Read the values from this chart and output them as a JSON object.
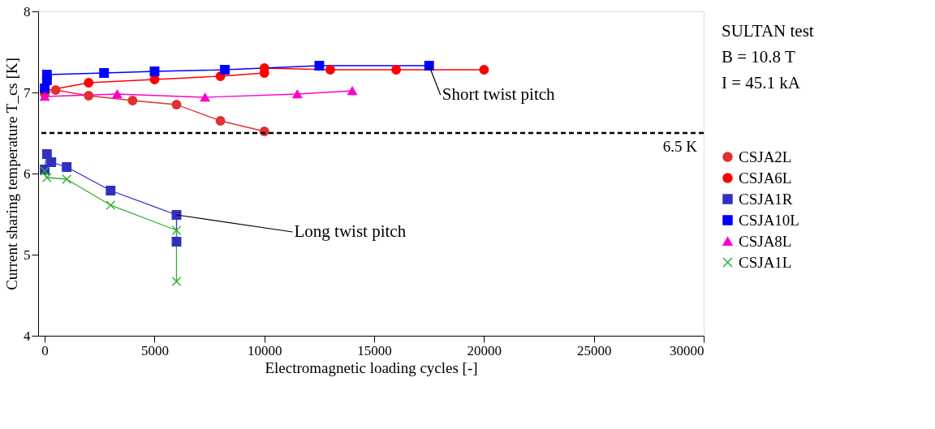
{
  "chart_data": {
    "type": "line",
    "xlabel": "Electromagnetic loading cycles [-]",
    "ylabel": "Current sharing temperature T_cs [K]",
    "xlim": [
      -300,
      30000
    ],
    "xticks": [
      0,
      5000,
      10000,
      15000,
      20000,
      25000,
      30000
    ],
    "ylim": [
      4,
      8
    ],
    "yticks": [
      4,
      5,
      6,
      7,
      8
    ],
    "grid": false,
    "legend": "right",
    "line_style": "solid",
    "series": [
      {
        "name": "CSJA2L",
        "color": "#e03030",
        "marker": "circle",
        "x": [
          0,
          500,
          2000,
          4000,
          6000,
          8000,
          10000
        ],
        "values": [
          6.98,
          7.03,
          6.96,
          6.9,
          6.85,
          6.65,
          6.52
        ]
      },
      {
        "name": "CSJA6L",
        "color": "#ff0000",
        "marker": "circle",
        "x": [
          0,
          2000,
          5000,
          8000,
          10000,
          10000,
          13000,
          16000,
          20000
        ],
        "values": [
          7.02,
          7.12,
          7.16,
          7.2,
          7.24,
          7.3,
          7.28,
          7.28,
          7.28
        ]
      },
      {
        "name": "CSJA1R",
        "color": "#3030c0",
        "marker": "square",
        "x": [
          0,
          100,
          300,
          1000,
          3000,
          6000,
          6000
        ],
        "values": [
          6.05,
          6.24,
          6.14,
          6.08,
          5.79,
          5.49,
          5.16
        ]
      },
      {
        "name": "CSJA10L",
        "color": "#0000ff",
        "marker": "square",
        "x": [
          0,
          100,
          100,
          2700,
          5000,
          8200,
          12500,
          17500
        ],
        "values": [
          7.05,
          7.15,
          7.22,
          7.24,
          7.26,
          7.28,
          7.33,
          7.33
        ]
      },
      {
        "name": "CSJA8L",
        "color": "#ff00cc",
        "marker": "triangle",
        "x": [
          0,
          3300,
          7300,
          11500,
          14000
        ],
        "values": [
          6.95,
          6.98,
          6.94,
          6.98,
          7.02
        ]
      },
      {
        "name": "CSJA1L",
        "color": "#30b030",
        "marker": "cross",
        "x": [
          0,
          100,
          1000,
          3000,
          6000,
          6000
        ],
        "values": [
          6.03,
          5.95,
          5.93,
          5.61,
          5.3,
          4.67
        ]
      }
    ],
    "ref_lines": [
      {
        "axis": "y",
        "value": 6.5,
        "label": "6.5 K",
        "color": "#000000",
        "line_style": "dashed"
      }
    ],
    "annotations": [
      {
        "text": "Short twist pitch",
        "x": 17500,
        "y": 7.33
      },
      {
        "text": "Long twist pitch",
        "x": 6000,
        "y": 5.49
      },
      "SULTAN test",
      "B = 10.8 T",
      "I = 45.1 kA"
    ]
  }
}
